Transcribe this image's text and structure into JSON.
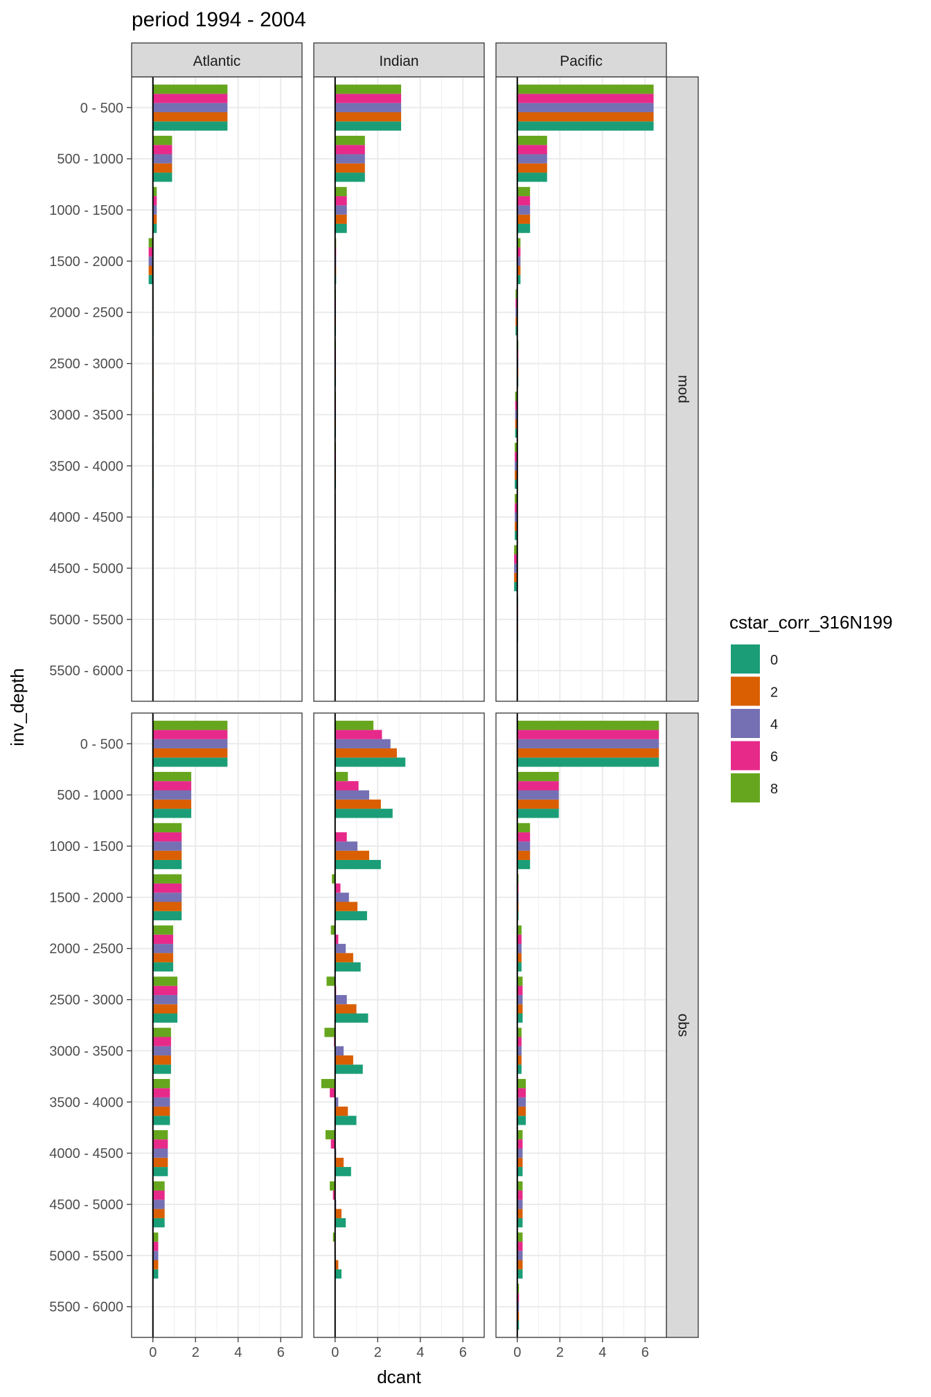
{
  "chart_data": {
    "type": "bar",
    "orientation": "horizontal",
    "title": "period 1994 - 2004",
    "xlabel": "dcant",
    "ylabel": "inv_depth",
    "xlim": [
      -1,
      7
    ],
    "x_ticks": [
      0,
      2,
      4,
      6
    ],
    "grid": true,
    "legend_title": "cstar_corr_316N199",
    "legend_position": "right",
    "columns": [
      "Atlantic",
      "Indian",
      "Pacific"
    ],
    "rows": [
      "mod",
      "obs"
    ],
    "categories": [
      "0 - 500",
      "500 - 1000",
      "1000 - 1500",
      "1500 - 2000",
      "2000 - 2500",
      "2500 - 3000",
      "3000 - 3500",
      "3500 - 4000",
      "4000 - 4500",
      "4500 - 5000",
      "5000 - 5500",
      "5500 - 6000"
    ],
    "series": [
      {
        "name": "0",
        "color": "#1b9e77"
      },
      {
        "name": "2",
        "color": "#d95f02"
      },
      {
        "name": "4",
        "color": "#7570b3"
      },
      {
        "name": "6",
        "color": "#e7298a"
      },
      {
        "name": "8",
        "color": "#66a61e"
      }
    ],
    "panels": [
      {
        "column": "Atlantic",
        "row": "mod",
        "values": [
          [
            3.5,
            3.5,
            3.5,
            3.5,
            3.5
          ],
          [
            0.9,
            0.9,
            0.9,
            0.9,
            0.9
          ],
          [
            0.18,
            0.18,
            0.18,
            0.18,
            0.18
          ],
          [
            -0.2,
            -0.2,
            -0.2,
            -0.2,
            -0.2
          ],
          [
            0.03,
            0.03,
            0.03,
            0.03,
            0.03
          ],
          [
            0.03,
            0.03,
            0.03,
            0.03,
            0.03
          ],
          [
            0.03,
            0.03,
            0.03,
            0.03,
            0.03
          ],
          [
            0.03,
            0.03,
            0.03,
            0.03,
            0.03
          ],
          [
            0.02,
            0.02,
            0.02,
            0.02,
            0.02
          ],
          [
            0.02,
            0.02,
            0.02,
            0.02,
            0.02
          ],
          [
            0.01,
            0.01,
            0.01,
            0.01,
            0.01
          ],
          [
            0.01,
            0.01,
            0.01,
            0.01,
            0.01
          ]
        ]
      },
      {
        "column": "Indian",
        "row": "mod",
        "values": [
          [
            3.1,
            3.1,
            3.1,
            3.1,
            3.1
          ],
          [
            1.4,
            1.4,
            1.4,
            1.4,
            1.4
          ],
          [
            0.55,
            0.55,
            0.55,
            0.55,
            0.55
          ],
          [
            0.05,
            0.05,
            0.05,
            0.05,
            0.05
          ],
          [
            0.04,
            0.04,
            0.04,
            0.04,
            0.04
          ],
          [
            0.04,
            0.04,
            0.04,
            0.04,
            0.04
          ],
          [
            0.04,
            0.04,
            0.04,
            0.04,
            0.04
          ],
          [
            0.04,
            0.04,
            0.04,
            0.04,
            0.04
          ],
          [
            0.03,
            0.03,
            0.03,
            0.03,
            0.03
          ],
          [
            0.03,
            0.03,
            0.03,
            0.03,
            0.03
          ],
          [
            0.01,
            0.01,
            0.01,
            0.01,
            0.01
          ],
          [
            0,
            0,
            0,
            0,
            0
          ]
        ]
      },
      {
        "column": "Pacific",
        "row": "mod",
        "values": [
          [
            6.4,
            6.4,
            6.4,
            6.4,
            6.4
          ],
          [
            1.4,
            1.4,
            1.4,
            1.4,
            1.4
          ],
          [
            0.6,
            0.6,
            0.6,
            0.6,
            0.6
          ],
          [
            0.15,
            0.15,
            0.15,
            0.15,
            0.15
          ],
          [
            -0.08,
            -0.08,
            -0.08,
            -0.08,
            -0.08
          ],
          [
            0.05,
            0.05,
            0.05,
            0.05,
            0.05
          ],
          [
            -0.1,
            -0.1,
            -0.1,
            -0.1,
            -0.1
          ],
          [
            -0.12,
            -0.12,
            -0.12,
            -0.12,
            -0.12
          ],
          [
            -0.12,
            -0.12,
            -0.12,
            -0.12,
            -0.12
          ],
          [
            -0.15,
            -0.15,
            -0.15,
            -0.15,
            -0.15
          ],
          [
            0.04,
            0.04,
            0.04,
            0.04,
            0.04
          ],
          [
            0,
            0,
            0,
            0,
            0
          ]
        ]
      },
      {
        "column": "Atlantic",
        "row": "obs",
        "values": [
          [
            3.5,
            3.5,
            3.5,
            3.5,
            3.5
          ],
          [
            1.8,
            1.8,
            1.8,
            1.8,
            1.8
          ],
          [
            1.35,
            1.35,
            1.35,
            1.35,
            1.35
          ],
          [
            1.35,
            1.35,
            1.35,
            1.35,
            1.35
          ],
          [
            0.95,
            0.95,
            0.95,
            0.95,
            0.95
          ],
          [
            1.15,
            1.15,
            1.15,
            1.15,
            1.15
          ],
          [
            0.85,
            0.85,
            0.85,
            0.85,
            0.85
          ],
          [
            0.8,
            0.8,
            0.8,
            0.8,
            0.8
          ],
          [
            0.7,
            0.7,
            0.7,
            0.7,
            0.7
          ],
          [
            0.55,
            0.55,
            0.55,
            0.55,
            0.55
          ],
          [
            0.25,
            0.25,
            0.25,
            0.25,
            0.25
          ],
          [
            0.02,
            0.02,
            0.02,
            0.02,
            0.02
          ]
        ]
      },
      {
        "column": "Indian",
        "row": "obs",
        "values": [
          [
            3.3,
            2.9,
            2.6,
            2.2,
            1.8
          ],
          [
            2.7,
            2.15,
            1.6,
            1.1,
            0.6
          ],
          [
            2.15,
            1.6,
            1.05,
            0.55,
            0
          ],
          [
            1.5,
            1.05,
            0.65,
            0.25,
            -0.15
          ],
          [
            1.2,
            0.85,
            0.5,
            0.15,
            -0.2
          ],
          [
            1.55,
            1.0,
            0.55,
            0.05,
            -0.4
          ],
          [
            1.3,
            0.85,
            0.4,
            -0.05,
            -0.5
          ],
          [
            1.0,
            0.6,
            0.15,
            -0.25,
            -0.65
          ],
          [
            0.75,
            0.4,
            0.05,
            -0.2,
            -0.45
          ],
          [
            0.5,
            0.3,
            0.05,
            -0.1,
            -0.25
          ],
          [
            0.3,
            0.15,
            0.03,
            -0.03,
            -0.1
          ],
          [
            0.02,
            0.02,
            0.02,
            0.02,
            0.02
          ]
        ]
      },
      {
        "column": "Pacific",
        "row": "obs",
        "values": [
          [
            6.65,
            6.65,
            6.65,
            6.65,
            6.65
          ],
          [
            1.95,
            1.95,
            1.95,
            1.95,
            1.95
          ],
          [
            0.6,
            0.6,
            0.6,
            0.6,
            0.6
          ],
          [
            0.06,
            0.06,
            0.06,
            0.06,
            0.06
          ],
          [
            0.2,
            0.2,
            0.2,
            0.2,
            0.2
          ],
          [
            0.25,
            0.25,
            0.25,
            0.25,
            0.25
          ],
          [
            0.2,
            0.2,
            0.2,
            0.2,
            0.2
          ],
          [
            0.4,
            0.4,
            0.4,
            0.4,
            0.4
          ],
          [
            0.25,
            0.25,
            0.25,
            0.25,
            0.25
          ],
          [
            0.25,
            0.25,
            0.25,
            0.25,
            0.25
          ],
          [
            0.25,
            0.25,
            0.25,
            0.25,
            0.25
          ],
          [
            0.08,
            0.08,
            0.08,
            0.08,
            0.08
          ]
        ]
      }
    ]
  }
}
